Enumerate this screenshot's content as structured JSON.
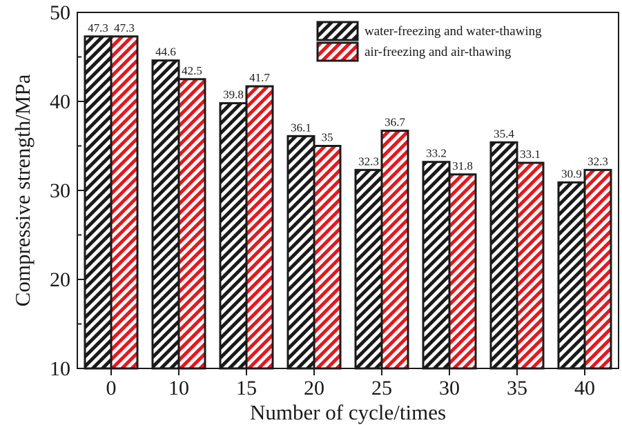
{
  "chart_data": {
    "type": "bar",
    "title": "",
    "xlabel": "Number of cycle/times",
    "ylabel": "Compressive strength/MPa",
    "categories": [
      "0",
      "10",
      "15",
      "20",
      "25",
      "30",
      "35",
      "40"
    ],
    "ylim": [
      10,
      50
    ],
    "yticks": [
      "10",
      "20",
      "30",
      "40",
      "50"
    ],
    "legend_position": "top-right",
    "grid": false,
    "series": [
      {
        "name": "water-freezing and water-thawing",
        "color": "#1a1a1a",
        "pattern": "black-diagonal-hatch",
        "values": [
          47.3,
          44.6,
          39.8,
          36.1,
          32.3,
          33.2,
          35.4,
          30.9
        ],
        "labels": [
          "47.3",
          "44.6",
          "39.8",
          "36.1",
          "32.3",
          "33.2",
          "35.4",
          "30.9"
        ]
      },
      {
        "name": "air-freezing and air-thawing",
        "color": "#e8161b",
        "pattern": "red-diagonal-hatch",
        "values": [
          47.3,
          42.5,
          41.7,
          35,
          36.7,
          31.8,
          33.1,
          32.3
        ],
        "labels": [
          "47.3",
          "42.5",
          "41.7",
          "35",
          "36.7",
          "31.8",
          "33.1",
          "32.3"
        ]
      }
    ]
  }
}
